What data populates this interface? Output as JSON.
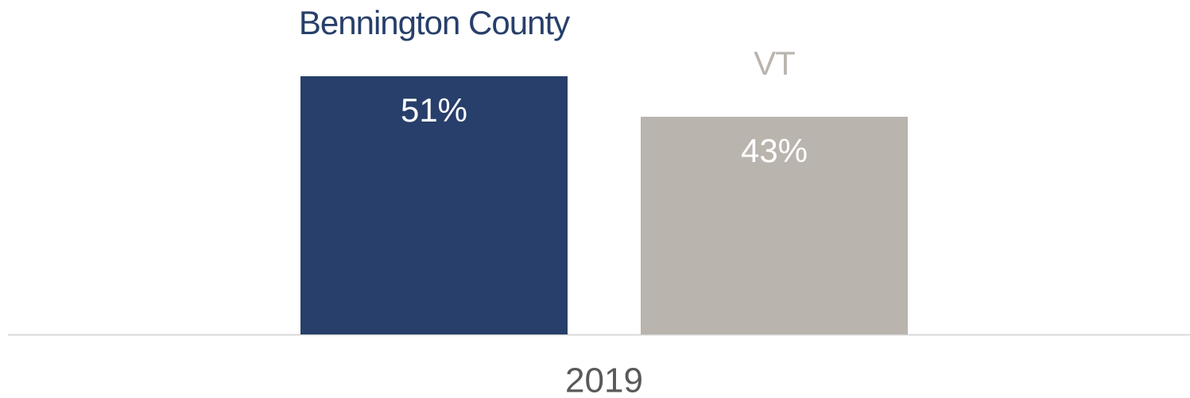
{
  "chart_data": {
    "type": "bar",
    "categories": [
      "2019"
    ],
    "series": [
      {
        "name": "Bennington County",
        "color": "#273f6a",
        "values": [
          51
        ],
        "value_labels": [
          "51%"
        ]
      },
      {
        "name": "VT",
        "color": "#b9b4ae",
        "values": [
          43
        ],
        "value_labels": [
          "43%"
        ]
      }
    ]
  }
}
